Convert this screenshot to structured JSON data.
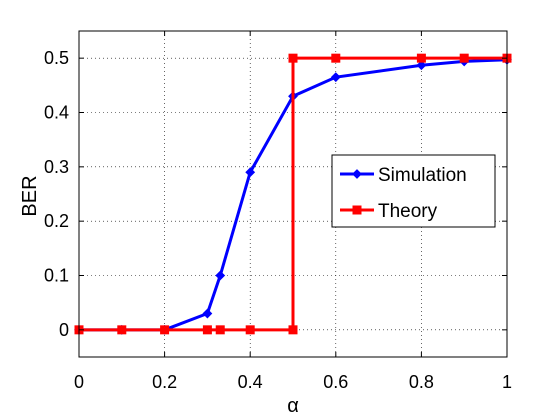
{
  "chart_data": {
    "type": "line",
    "xlabel": "α",
    "ylabel": "BER",
    "xlim": [
      0,
      1
    ],
    "ylim": [
      -0.05,
      0.55
    ],
    "xticks": [
      0,
      0.2,
      0.4,
      0.6,
      0.8,
      1
    ],
    "yticks": [
      0,
      0.1,
      0.2,
      0.3,
      0.4,
      0.5
    ],
    "xtick_labels": [
      "0",
      "0.2",
      "0.4",
      "0.6",
      "0.8",
      "1"
    ],
    "ytick_labels": [
      "0",
      "0.1",
      "0.2",
      "0.3",
      "0.4",
      "0.5"
    ],
    "grid": true,
    "legend_position": "right",
    "series": [
      {
        "name": "Simulation",
        "color": "#0000ff",
        "marker": "diamond",
        "x": [
          0,
          0.1,
          0.2,
          0.3,
          0.33,
          0.4,
          0.5,
          0.6,
          0.8,
          0.9,
          1.0
        ],
        "y": [
          0,
          0,
          0,
          0.03,
          0.1,
          0.29,
          0.43,
          0.465,
          0.487,
          0.494,
          0.497
        ]
      },
      {
        "name": "Theory",
        "color": "#ff0000",
        "marker": "square",
        "x": [
          0,
          0.1,
          0.2,
          0.3,
          0.33,
          0.4,
          0.5,
          0.5,
          0.6,
          0.8,
          0.9,
          1.0
        ],
        "y": [
          0,
          0,
          0,
          0,
          0,
          0,
          0,
          0.5,
          0.5,
          0.5,
          0.5,
          0.5
        ]
      }
    ]
  }
}
